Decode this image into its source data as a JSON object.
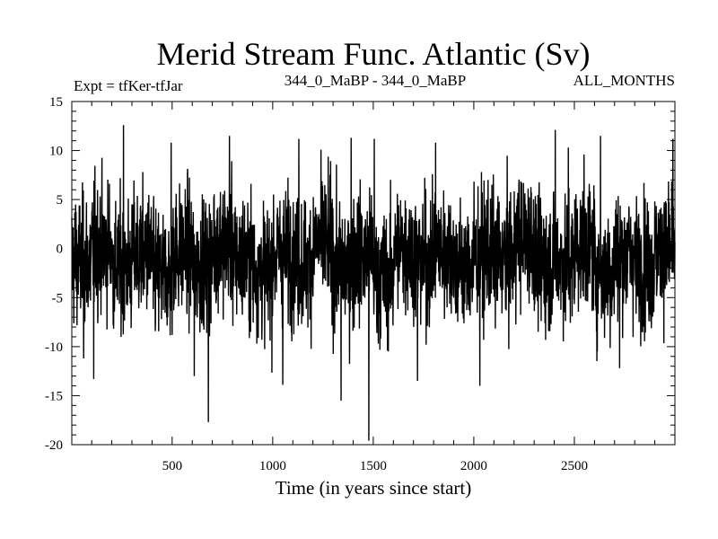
{
  "chart_data": {
    "type": "line",
    "title": "Merid Stream Func. Atlantic (Sv)",
    "subtitle_left": "Expt = tfKer-tfJar",
    "subtitle_center": "344_0_MaBP - 344_0_MaBP",
    "subtitle_right": "ALL_MONTHS",
    "xlabel": "Time (in years since start)",
    "ylabel": "",
    "xlim": [
      1,
      3000
    ],
    "ylim": [
      -20,
      15
    ],
    "x_ticks": [
      500,
      1000,
      1500,
      2000,
      2500
    ],
    "y_ticks": [
      -20,
      -15,
      -10,
      -5,
      0,
      5,
      10,
      15
    ],
    "x_tick_labels": [
      "500",
      "1000",
      "1500",
      "2000",
      "2500"
    ],
    "y_tick_labels": [
      "-20",
      "-15",
      "-10",
      "-5",
      "0",
      "5",
      "10",
      "15"
    ],
    "grid": false,
    "line_color": "#000000",
    "series": [
      {
        "values_per_year": [
          -1.2,
          2.8,
          -3.1,
          0.4,
          -5.2,
          1.5,
          -2.0,
          3.6,
          -0.8,
          -4.1,
          0.9,
          -1.7,
          4.2,
          -2.9,
          0.3,
          -6.3,
          2.1,
          -1.1,
          1.8,
          -3.4,
          0.6,
          -0.9,
          5.1,
          -2.4,
          -1.6,
          3.0,
          -4.7,
          0.8,
          -2.2,
          1.4
        ],
        "notable_points": [
          {
            "x": 20,
            "y": 4.5
          },
          {
            "x": 60,
            "y": -11.2
          },
          {
            "x": 110,
            "y": -13.3
          },
          {
            "x": 258,
            "y": 12.6
          },
          {
            "x": 495,
            "y": 10.8
          },
          {
            "x": 610,
            "y": -13.0
          },
          {
            "x": 680,
            "y": -17.7
          },
          {
            "x": 785,
            "y": 11.5
          },
          {
            "x": 1050,
            "y": -13.9
          },
          {
            "x": 1130,
            "y": 11.2
          },
          {
            "x": 1340,
            "y": -15.5
          },
          {
            "x": 1390,
            "y": 11.3
          },
          {
            "x": 1478,
            "y": -19.6
          },
          {
            "x": 1505,
            "y": 11.2
          },
          {
            "x": 1720,
            "y": -13.5
          },
          {
            "x": 1810,
            "y": 10.8
          },
          {
            "x": 2030,
            "y": -14.0
          },
          {
            "x": 2405,
            "y": 12.1
          },
          {
            "x": 2470,
            "y": 10.3
          },
          {
            "x": 2630,
            "y": 11.5
          },
          {
            "x": 2725,
            "y": -12.2
          },
          {
            "x": 2990,
            "y": 11.2
          }
        ]
      }
    ]
  }
}
